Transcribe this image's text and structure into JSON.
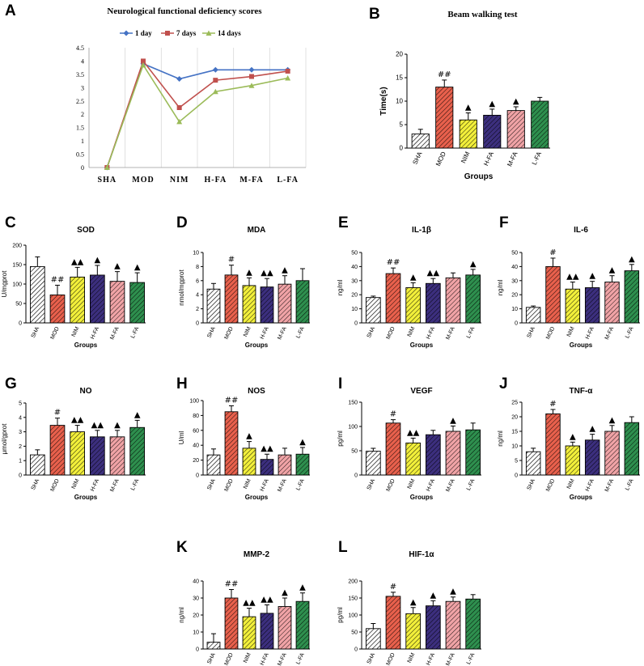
{
  "colors": {
    "SHA": "#ffffff",
    "MOD": "#e8604c",
    "NIM": "#f2ef3a",
    "H-FA": "#3c2f7e",
    "M-FA": "#f0a3a6",
    "L-FA": "#2e8f4e",
    "line_1day": "#4472c4",
    "line_7days": "#c0504d",
    "line_14days": "#9bbb59"
  },
  "chart_data": [
    {
      "panel": "A",
      "type": "line",
      "title": "Neurological functional deficiency scores",
      "categories": [
        "SHA",
        "MOD",
        "NIM",
        "H-FA",
        "M-FA",
        "L-FA"
      ],
      "ylim": [
        0,
        4.5
      ],
      "yticks": [
        "0",
        "0.5",
        "1",
        "1.5",
        "2",
        "2.5",
        "3",
        "3.5",
        "4",
        "4.5"
      ],
      "series": [
        {
          "name": "1 day",
          "values": [
            0,
            3.9,
            3.33,
            3.67,
            3.67,
            3.67
          ]
        },
        {
          "name": "7 days",
          "values": [
            0,
            4.0,
            2.25,
            3.28,
            3.42,
            3.62
          ]
        },
        {
          "name": "14 days",
          "values": [
            0,
            3.85,
            1.72,
            2.85,
            3.08,
            3.36
          ]
        }
      ]
    },
    {
      "panel": "B",
      "type": "bar",
      "title": "Beam walking test",
      "ylabel": "Time(s)",
      "xlabel": "Groups",
      "categories": [
        "SHA",
        "MOD",
        "NIM",
        "H-FA",
        "M-FA",
        "L-FA"
      ],
      "values": [
        3,
        13,
        6,
        7,
        8,
        10
      ],
      "errors": [
        1,
        1.5,
        1.5,
        1.3,
        0.8,
        0.8
      ],
      "ylim": [
        0,
        20
      ],
      "yticks": [
        "0",
        "5",
        "10",
        "15",
        "20"
      ],
      "marks": [
        "",
        "##",
        "▲",
        "▲",
        "▲",
        ""
      ]
    },
    {
      "panel": "C",
      "type": "bar",
      "title": "SOD",
      "ylabel": "U/mgprot",
      "xlabel": "Groups",
      "categories": [
        "SHA",
        "MOD",
        "NIM",
        "H-FA",
        "M-FA",
        "L-FA"
      ],
      "values": [
        145,
        72,
        118,
        123,
        107,
        104
      ],
      "errors": [
        25,
        25,
        25,
        25,
        25,
        25
      ],
      "ylim": [
        0,
        200
      ],
      "yticks": [
        "0",
        "50",
        "100",
        "150",
        "200"
      ],
      "marks": [
        "",
        "##",
        "▲▲",
        "▲",
        "▲",
        "▲"
      ]
    },
    {
      "panel": "D",
      "type": "bar",
      "title": "MDA",
      "ylabel": "nmol/mgprot",
      "xlabel": "Groups",
      "categories": [
        "SHA",
        "MOD",
        "NIM",
        "H-FA",
        "M-FA",
        "L-FA"
      ],
      "values": [
        4.8,
        6.8,
        5.3,
        5.1,
        5.5,
        6.0
      ],
      "errors": [
        0.8,
        1.4,
        1.1,
        1.2,
        1.2,
        1.7
      ],
      "ylim": [
        0,
        10
      ],
      "yticks": [
        "0",
        "2",
        "4",
        "6",
        "8",
        "10"
      ],
      "marks": [
        "",
        "#",
        "▲",
        "▲▲",
        "▲",
        ""
      ]
    },
    {
      "panel": "E",
      "type": "bar",
      "title": "IL-1β",
      "ylabel": "ng/ml",
      "xlabel": "Groups",
      "categories": [
        "SHA",
        "MOD",
        "NIM",
        "H-FA",
        "M-FA",
        "L-FA"
      ],
      "values": [
        18,
        35,
        25,
        28,
        32,
        34
      ],
      "errors": [
        1,
        4,
        3.5,
        3.5,
        3.5,
        4
      ],
      "ylim": [
        0,
        50
      ],
      "yticks": [
        "0",
        "10",
        "20",
        "30",
        "40",
        "50"
      ],
      "marks": [
        "",
        "##",
        "▲",
        "▲▲",
        "",
        "▲"
      ]
    },
    {
      "panel": "F",
      "type": "bar",
      "title": "IL-6",
      "ylabel": "ng/ml",
      "xlabel": "Groups",
      "categories": [
        "SHA",
        "MOD",
        "NIM",
        "H-FA",
        "M-FA",
        "L-FA"
      ],
      "values": [
        11,
        40,
        24,
        25,
        29,
        37
      ],
      "errors": [
        1,
        6,
        5,
        4.5,
        4.5,
        4.5
      ],
      "ylim": [
        0,
        50
      ],
      "yticks": [
        "0",
        "10",
        "20",
        "30",
        "40",
        "50"
      ],
      "marks": [
        "",
        "#",
        "▲▲",
        "▲",
        "▲",
        "▲"
      ]
    },
    {
      "panel": "G",
      "type": "bar",
      "title": "NO",
      "ylabel": "μmol/gprot",
      "xlabel": "Groups",
      "categories": [
        "SHA",
        "MOD",
        "NIM",
        "H-FA",
        "M-FA",
        "L-FA"
      ],
      "values": [
        1.4,
        3.45,
        3.0,
        2.65,
        2.65,
        3.3
      ],
      "errors": [
        0.35,
        0.5,
        0.45,
        0.45,
        0.45,
        0.5
      ],
      "ylim": [
        0,
        5
      ],
      "yticks": [
        "0",
        "1",
        "2",
        "3",
        "4",
        "5"
      ],
      "marks": [
        "",
        "#",
        "▲▲",
        "▲▲",
        "▲",
        "▲"
      ]
    },
    {
      "panel": "H",
      "type": "bar",
      "title": "NOS",
      "ylabel": "U/ml",
      "xlabel": "Groups",
      "categories": [
        "SHA",
        "MOD",
        "NIM",
        "H-FA",
        "M-FA",
        "L-FA"
      ],
      "values": [
        27,
        85,
        36,
        21,
        27,
        28
      ],
      "errors": [
        8,
        8,
        9,
        7,
        9,
        9
      ],
      "ylim": [
        0,
        100
      ],
      "yticks": [
        "0",
        "20",
        "40",
        "60",
        "80",
        "100"
      ],
      "marks": [
        "",
        "##",
        "▲",
        "▲▲",
        "",
        "▲"
      ]
    },
    {
      "panel": "I",
      "type": "bar",
      "title": "VEGF",
      "ylabel": "pg/ml",
      "xlabel": "Groups",
      "categories": [
        "SHA",
        "MOD",
        "NIM",
        "H-FA",
        "M-FA",
        "L-FA"
      ],
      "values": [
        49,
        107,
        66,
        83,
        90,
        93
      ],
      "errors": [
        6,
        7,
        10,
        9,
        11,
        14
      ],
      "ylim": [
        0,
        150
      ],
      "yticks": [
        "0",
        "50",
        "100",
        "150"
      ],
      "marks": [
        "",
        "#",
        "▲▲",
        "",
        "▲",
        ""
      ]
    },
    {
      "panel": "J",
      "type": "bar",
      "title": "TNF-α",
      "ylabel": "ng/ml",
      "xlabel": "Groups",
      "categories": [
        "SHA",
        "MOD",
        "NIM",
        "H-FA",
        "M-FA",
        "L-FA"
      ],
      "values": [
        8,
        21,
        10,
        12,
        15,
        18
      ],
      "errors": [
        1.2,
        1.5,
        1.3,
        2,
        2,
        2
      ],
      "ylim": [
        0,
        25
      ],
      "yticks": [
        "0",
        "5",
        "10",
        "15",
        "20",
        "25"
      ],
      "marks": [
        "",
        "#",
        "▲",
        "▲",
        "▲",
        ""
      ]
    },
    {
      "panel": "K",
      "type": "bar",
      "title": "MMP-2",
      "ylabel": "ng/ml",
      "xlabel": "Groups",
      "categories": [
        "SHA",
        "MOD",
        "NIM",
        "H-FA",
        "M-FA",
        "L-FA"
      ],
      "values": [
        4,
        30,
        19,
        21,
        25,
        28
      ],
      "errors": [
        5,
        5,
        5,
        5,
        5,
        5
      ],
      "ylim": [
        0,
        40
      ],
      "yticks": [
        "0",
        "10",
        "20",
        "30",
        "40"
      ],
      "marks": [
        "",
        "##",
        "▲▲",
        "▲▲",
        "▲",
        "▲"
      ]
    },
    {
      "panel": "L",
      "type": "bar",
      "title": "HIF-1α",
      "ylabel": "pg/ml",
      "xlabel": "Groups",
      "categories": [
        "SHA",
        "MOD",
        "NIM",
        "H-FA",
        "M-FA",
        "L-FA"
      ],
      "values": [
        60,
        155,
        104,
        127,
        140,
        147
      ],
      "errors": [
        15,
        12,
        18,
        15,
        13,
        13
      ],
      "ylim": [
        0,
        200
      ],
      "yticks": [
        "0",
        "50",
        "100",
        "150",
        "200"
      ],
      "marks": [
        "",
        "#",
        "▲",
        "▲",
        "▲",
        ""
      ]
    }
  ]
}
